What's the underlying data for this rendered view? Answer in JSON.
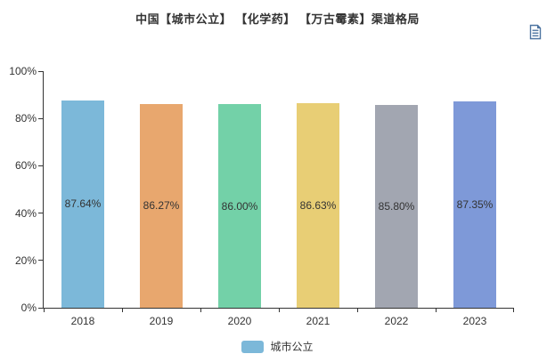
{
  "page": {
    "background": "#ffffff"
  },
  "header": {
    "title": "中国【城市公立】 【化学药】 【万古霉素】渠道格局",
    "title_color": "#333333"
  },
  "toolbox": {
    "data_view_icon": "data-view-icon",
    "icon_color": "#4d74a1"
  },
  "chart_data": {
    "type": "bar",
    "title": "中国【城市公立】 【化学药】 【万古霉素】渠道格局",
    "categories": [
      "2018",
      "2019",
      "2020",
      "2021",
      "2022",
      "2023"
    ],
    "series": [
      {
        "name": "城市公立",
        "values": [
          87.64,
          86.27,
          86.0,
          86.63,
          85.8,
          87.35
        ]
      }
    ],
    "value_labels": [
      "87.64%",
      "86.27%",
      "86.00%",
      "86.63%",
      "85.80%",
      "87.35%"
    ],
    "bar_colors": [
      "#7cb8d9",
      "#e8a76e",
      "#73d1a8",
      "#e8ce75",
      "#a2a6b1",
      "#7e99d8"
    ],
    "xlabel": "",
    "ylabel": "",
    "ylim": [
      0,
      100
    ],
    "yticks": [
      0,
      20,
      40,
      60,
      80,
      100
    ],
    "ytick_labels": [
      "0%",
      "20%",
      "40%",
      "60%",
      "80%",
      "100%"
    ],
    "grid": false,
    "label_position": "inside-middle",
    "axis_color": "#333333",
    "legend": {
      "position": "bottom-center",
      "items": [
        {
          "label": "城市公立",
          "color": "#7cb8d9"
        }
      ]
    }
  }
}
